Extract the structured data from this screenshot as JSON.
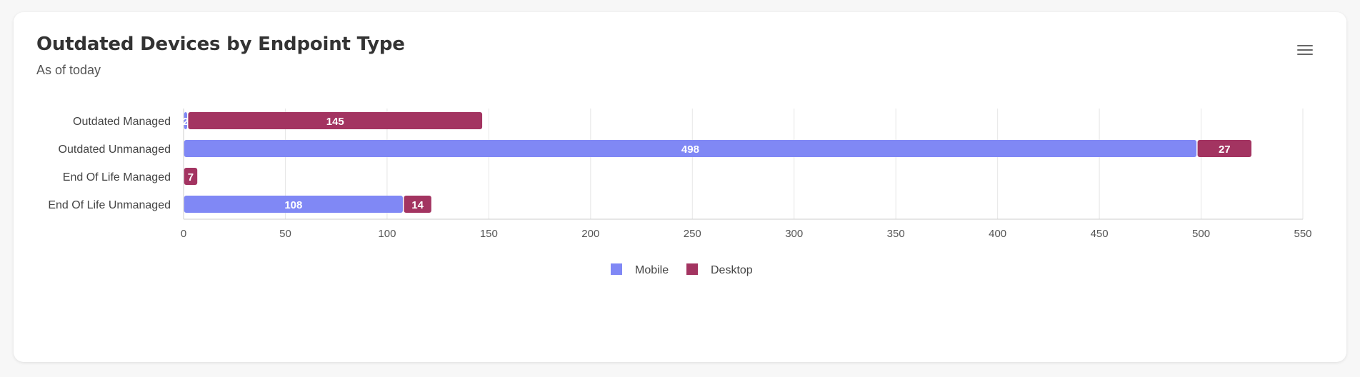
{
  "card": {
    "title": "Outdated Devices by Endpoint Type",
    "subtitle": "As of today",
    "menu_icon": "hamburger-menu-icon"
  },
  "chart_data": {
    "type": "bar",
    "orientation": "horizontal",
    "stacked": true,
    "categories": [
      "Outdated Managed",
      "Outdated Unmanaged",
      "End Of Life Managed",
      "End Of Life Unmanaged"
    ],
    "series": [
      {
        "name": "Mobile",
        "color": "#8088f5",
        "values": [
          2,
          498,
          0,
          108
        ],
        "labels": [
          "2",
          "498",
          "",
          "108"
        ]
      },
      {
        "name": "Desktop",
        "color": "#a33461",
        "values": [
          145,
          27,
          7,
          14
        ],
        "labels": [
          "145",
          "27",
          "7",
          "14"
        ]
      }
    ],
    "xlim": [
      0,
      550
    ],
    "xticks": [
      "0",
      "50",
      "100",
      "150",
      "200",
      "250",
      "300",
      "350",
      "400",
      "450",
      "500",
      "550"
    ],
    "grid": true,
    "legend": "bottom-center"
  }
}
